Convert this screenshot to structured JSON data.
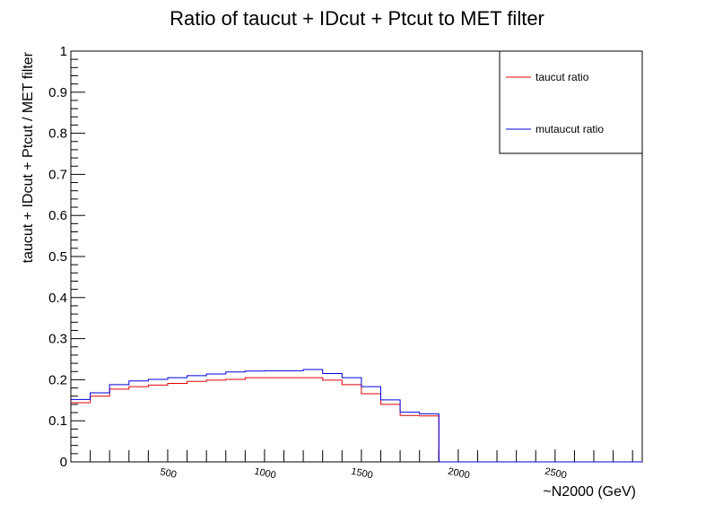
{
  "chart_data": {
    "type": "line",
    "title": "Ratio of taucut + IDcut + Ptcut to MET filter",
    "xlabel": "~N2000 (GeV)",
    "ylabel": "taucut + IDcut + Ptcut / MET filter",
    "xlim": [
      0,
      2950
    ],
    "ylim": [
      0,
      1
    ],
    "bin_edges": [
      0,
      100,
      200,
      300,
      400,
      500,
      600,
      700,
      800,
      900,
      1000,
      1100,
      1200,
      1300,
      1400,
      1500,
      1600,
      1700,
      1800,
      1900,
      2000,
      2100,
      2200,
      2300,
      2400,
      2500,
      2600,
      2700,
      2800,
      2900,
      2950
    ],
    "xticks": [
      500,
      1000,
      1500,
      2000,
      2500
    ],
    "xtick_labels": [
      "500",
      "1000",
      "1500",
      "2000",
      "2500"
    ],
    "yticks": [
      0,
      0.1,
      0.2,
      0.3,
      0.4,
      0.5,
      0.6,
      0.7,
      0.8,
      0.9,
      1
    ],
    "ytick_labels": [
      "0",
      "0.1",
      "0.2",
      "0.3",
      "0.4",
      "0.5",
      "0.6",
      "0.7",
      "0.8",
      "0.9",
      "1"
    ],
    "legend_position": "top-right",
    "series": [
      {
        "name": "taucut ratio",
        "color": "#e00000",
        "values": [
          0.144,
          0.16,
          0.177,
          0.183,
          0.187,
          0.191,
          0.196,
          0.199,
          0.201,
          0.205,
          0.205,
          0.205,
          0.205,
          0.199,
          0.188,
          0.166,
          0.14,
          0.113,
          0.112,
          0,
          0,
          0,
          0,
          0,
          0,
          0,
          0,
          0,
          0,
          0
        ]
      },
      {
        "name": "mutaucut ratio",
        "color": "#0000dd",
        "values": [
          0.152,
          0.168,
          0.188,
          0.197,
          0.201,
          0.205,
          0.21,
          0.214,
          0.219,
          0.221,
          0.222,
          0.222,
          0.225,
          0.215,
          0.205,
          0.183,
          0.151,
          0.121,
          0.117,
          0,
          0,
          0,
          0,
          0,
          0,
          0,
          0,
          0,
          0,
          0
        ]
      }
    ]
  }
}
